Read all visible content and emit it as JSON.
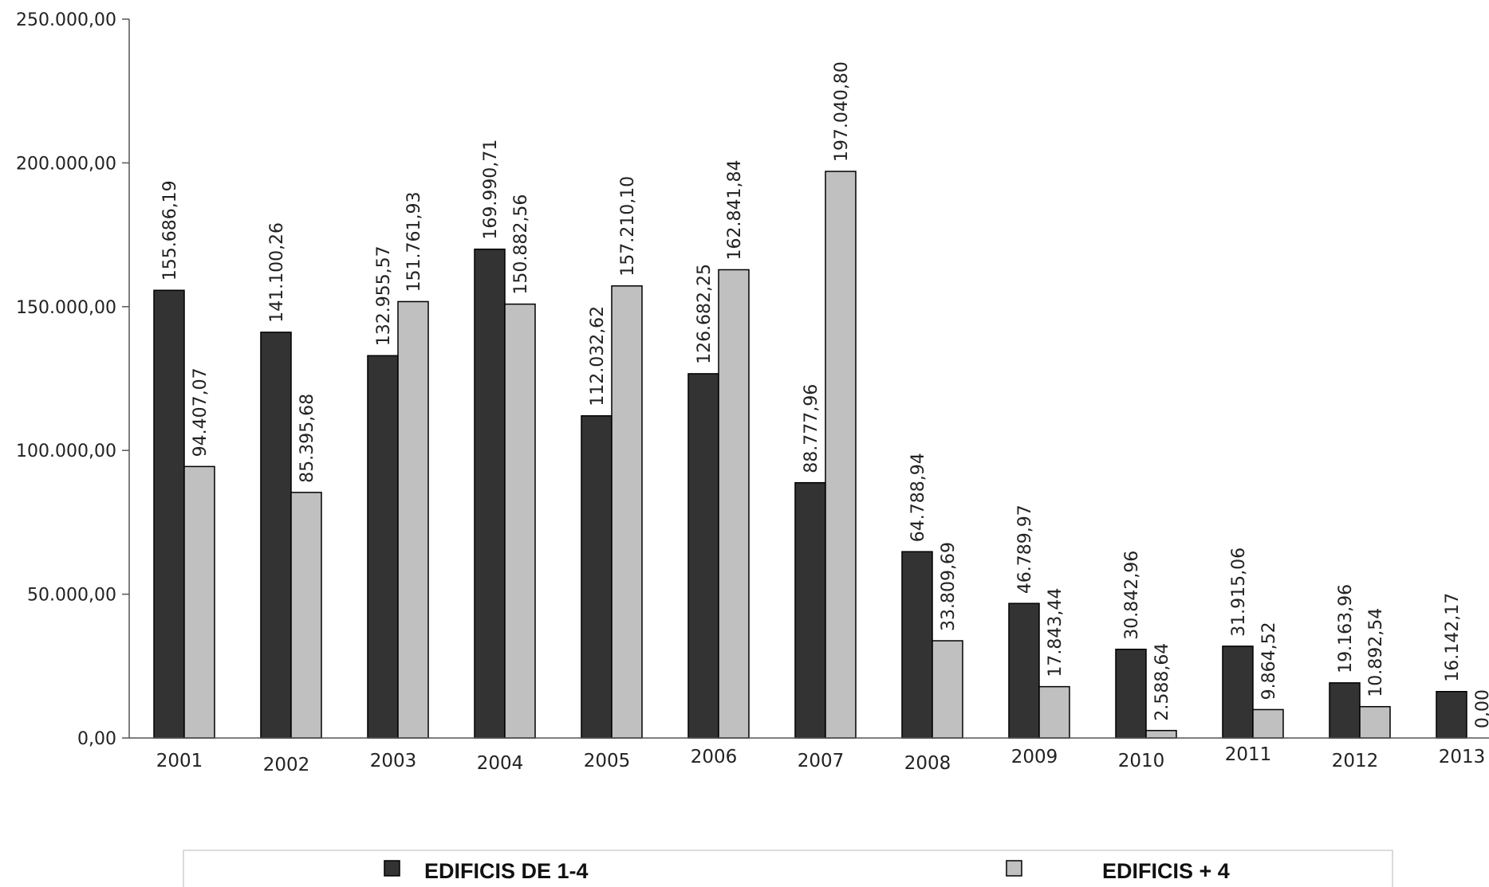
{
  "chart_data": {
    "type": "bar",
    "title": "",
    "xlabel": "",
    "ylabel": "",
    "ylim": [
      0,
      250000
    ],
    "yticks": [
      0,
      50000,
      100000,
      150000,
      200000,
      250000
    ],
    "ytick_labels": [
      "0,00",
      "50.000,00",
      "100.000,00",
      "150.000,00",
      "200.000,00",
      "250.000,00"
    ],
    "grid": false,
    "legend_position": "bottom",
    "categories": [
      "2001",
      "2002",
      "2003",
      "2004",
      "2005",
      "2006",
      "2007",
      "2008",
      "2009",
      "2010",
      "2011",
      "2012",
      "2013"
    ],
    "series": [
      {
        "name": "EDIFICIS DE 1-4",
        "color": "#333333",
        "values": [
          155686.19,
          141100.26,
          132955.57,
          169990.71,
          112032.62,
          126682.25,
          88777.96,
          64788.94,
          46789.97,
          30842.96,
          31915.06,
          19163.96,
          16142.17
        ],
        "labels": [
          "155.686,19",
          "141.100,26",
          "132.955,57",
          "169.990,71",
          "112.032,62",
          "126.682,25",
          "88.777,96",
          "64.788,94",
          "46.789,97",
          "30.842,96",
          "31.915,06",
          "19.163,96",
          "16.142,17"
        ]
      },
      {
        "name": "EDIFICIS + 4",
        "color": "#c0c0c0",
        "values": [
          94407.07,
          85395.68,
          151761.93,
          150882.56,
          157210.1,
          162841.84,
          197040.8,
          33809.69,
          17843.44,
          2588.64,
          9864.52,
          10892.54,
          0
        ],
        "labels": [
          "94.407,07",
          "85.395,68",
          "151.761,93",
          "150.882,56",
          "157.210,10",
          "162.841,84",
          "197.040,80",
          "33.809,69",
          "17.843,44",
          "2.588,64",
          "9.864,52",
          "10.892,54",
          "0,00"
        ]
      }
    ]
  }
}
